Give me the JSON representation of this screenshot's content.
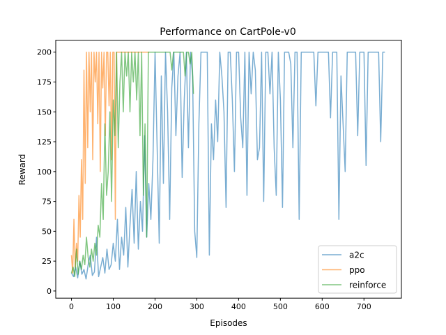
{
  "chart_data": {
    "type": "line",
    "title": "Performance on CartPole-v0",
    "xlabel": "Episodes",
    "ylabel": "Reward",
    "xlim": [
      -37.6,
      789.6
    ],
    "ylim": [
      -6,
      210
    ],
    "xticks": [
      0,
      100,
      200,
      300,
      400,
      500,
      600,
      700
    ],
    "yticks": [
      0,
      25,
      50,
      75,
      100,
      125,
      150,
      175,
      200
    ],
    "grid": false,
    "legend_position": "lower-right",
    "series": [
      {
        "name": "a2c",
        "color": "#1f77b4",
        "x_start": 0,
        "x_step": 5,
        "values": [
          15,
          12,
          20,
          11,
          25,
          14,
          18,
          10,
          22,
          30,
          13,
          16,
          45,
          12,
          20,
          28,
          15,
          35,
          18,
          22,
          40,
          25,
          60,
          18,
          45,
          30,
          70,
          20,
          55,
          85,
          40,
          100,
          35,
          75,
          50,
          130,
          45,
          90,
          60,
          110,
          200,
          120,
          40,
          180,
          90,
          200,
          150,
          60,
          170,
          200,
          130,
          180,
          200,
          95,
          160,
          200,
          120,
          200,
          180,
          50,
          28,
          140,
          200,
          200,
          200,
          200,
          30,
          140,
          110,
          160,
          125,
          200,
          180,
          150,
          70,
          200,
          200,
          160,
          100,
          200,
          200,
          145,
          120,
          200,
          80,
          200,
          165,
          200,
          185,
          110,
          120,
          200,
          75,
          200,
          200,
          165,
          200,
          120,
          80,
          200,
          160,
          70,
          200,
          200,
          200,
          190,
          120,
          200,
          200,
          60,
          200,
          200,
          200,
          200,
          200,
          200,
          200,
          155,
          200,
          200,
          200,
          200,
          200,
          200,
          145,
          200,
          200,
          200,
          60,
          180,
          140,
          100,
          200,
          200,
          200,
          200,
          200,
          130,
          200,
          200,
          200,
          105,
          200,
          200,
          200,
          200,
          200,
          200,
          125,
          200,
          200
        ]
      },
      {
        "name": "ppo",
        "color": "#ff7f0e",
        "x_start": 0,
        "x_step": 3,
        "values": [
          30,
          15,
          60,
          20,
          40,
          25,
          80,
          45,
          110,
          60,
          185,
          90,
          200,
          120,
          200,
          150,
          200,
          110,
          200,
          175,
          200,
          140,
          200,
          100,
          200,
          170,
          200,
          130,
          200,
          200,
          155,
          200,
          110,
          200,
          200,
          60,
          200,
          200,
          200,
          200,
          200,
          200,
          200,
          200,
          200,
          200,
          200,
          200,
          200,
          200,
          200,
          200,
          200,
          200,
          200,
          200,
          200,
          200,
          200,
          200,
          200,
          200,
          200
        ]
      },
      {
        "name": "reinforce",
        "color": "#2ca02c",
        "x_start": 0,
        "x_step": 4,
        "values": [
          15,
          20,
          12,
          35,
          14,
          25,
          18,
          30,
          22,
          45,
          28,
          20,
          35,
          25,
          40,
          30,
          55,
          45,
          90,
          60,
          140,
          80,
          100,
          150,
          75,
          160,
          130,
          200,
          120,
          175,
          200,
          150,
          200,
          180,
          200,
          150,
          200,
          175,
          200,
          160,
          200,
          130,
          200,
          80,
          140,
          45,
          200,
          200,
          200,
          200,
          200,
          200,
          200,
          200,
          200,
          200,
          200,
          200,
          200,
          200,
          185,
          200,
          200,
          200,
          200,
          200,
          200,
          200,
          180,
          200,
          200,
          190,
          200,
          165
        ]
      }
    ]
  }
}
